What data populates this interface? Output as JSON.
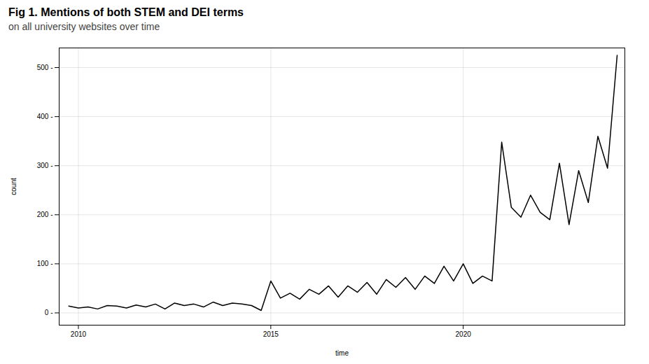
{
  "chart_data": {
    "type": "line",
    "title": "Fig 1. Mentions of both STEM and DEI terms",
    "subtitle": "on all university websites over time",
    "xlabel": "time",
    "ylabel": "count",
    "color": "#000000",
    "grid": true,
    "xlim": [
      2009.5,
      2024.2
    ],
    "xticks": [
      2010,
      2015,
      2020
    ],
    "ylim": [
      -25,
      540
    ],
    "yticks": [
      {
        "value": 0,
        "label": "0 -"
      },
      {
        "value": 100,
        "label": "100 -"
      },
      {
        "value": 200,
        "label": "200 -"
      },
      {
        "value": 300,
        "label": "300 -"
      },
      {
        "value": 400,
        "label": "400 -"
      },
      {
        "value": 500,
        "label": "500 -"
      }
    ],
    "x": [
      2009.75,
      2010.0,
      2010.25,
      2010.5,
      2010.75,
      2011.0,
      2011.25,
      2011.5,
      2011.75,
      2012.0,
      2012.25,
      2012.5,
      2012.75,
      2013.0,
      2013.25,
      2013.5,
      2013.75,
      2014.0,
      2014.25,
      2014.5,
      2014.75,
      2015.0,
      2015.25,
      2015.5,
      2015.75,
      2016.0,
      2016.25,
      2016.5,
      2016.75,
      2017.0,
      2017.25,
      2017.5,
      2017.75,
      2018.0,
      2018.25,
      2018.5,
      2018.75,
      2019.0,
      2019.25,
      2019.5,
      2019.75,
      2020.0,
      2020.25,
      2020.5,
      2020.75,
      2021.0,
      2021.25,
      2021.5,
      2021.75,
      2022.0,
      2022.25,
      2022.5,
      2022.75,
      2023.0,
      2023.25,
      2023.5,
      2023.75,
      2024.0
    ],
    "values": [
      14,
      10,
      12,
      8,
      15,
      14,
      10,
      16,
      12,
      18,
      8,
      20,
      15,
      18,
      12,
      22,
      15,
      20,
      18,
      15,
      5,
      65,
      30,
      40,
      28,
      48,
      38,
      55,
      32,
      55,
      42,
      62,
      38,
      68,
      52,
      72,
      48,
      75,
      60,
      95,
      65,
      100,
      60,
      75,
      65,
      348,
      215,
      195,
      240,
      205,
      190,
      305,
      180,
      290,
      225,
      360,
      295,
      525
    ]
  }
}
